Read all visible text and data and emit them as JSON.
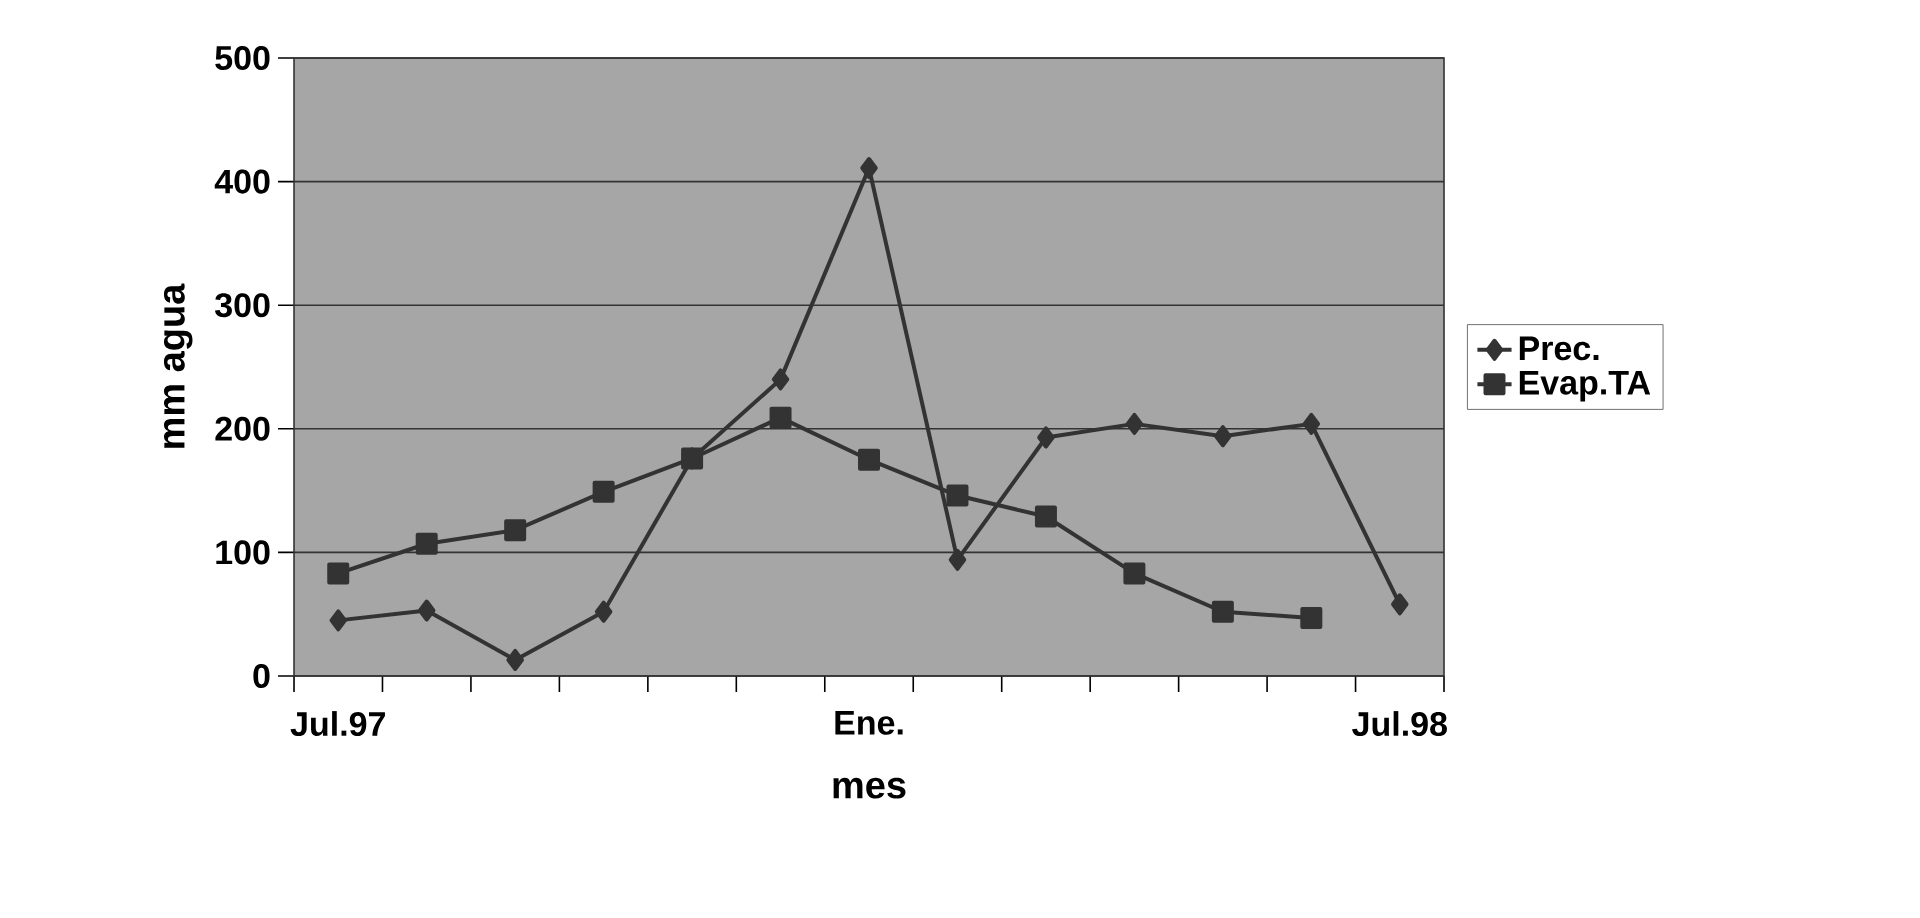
{
  "chart_data": {
    "type": "line",
    "xlabel": "mes",
    "ylabel": "mm agua",
    "categories": [
      "Jul.97",
      null,
      null,
      null,
      null,
      null,
      "Ene.",
      null,
      null,
      null,
      null,
      null,
      "Jul.98"
    ],
    "series": [
      {
        "name": "Prec.",
        "color": "#333333",
        "marker": "diamond",
        "values": [
          45,
          53,
          13,
          52,
          176,
          240,
          411,
          94,
          193,
          204,
          194,
          204,
          58
        ]
      },
      {
        "name": "Evap.TA",
        "color": "#333333",
        "marker": "square",
        "values": [
          83,
          107,
          118,
          149,
          176,
          209,
          175,
          146,
          129,
          83,
          52,
          47,
          null
        ]
      }
    ],
    "ylim": [
      0,
      500
    ],
    "yticks": [
      0,
      100,
      200,
      300,
      400,
      500
    ],
    "grid": "y",
    "legend": "right",
    "line_style": "solid"
  }
}
